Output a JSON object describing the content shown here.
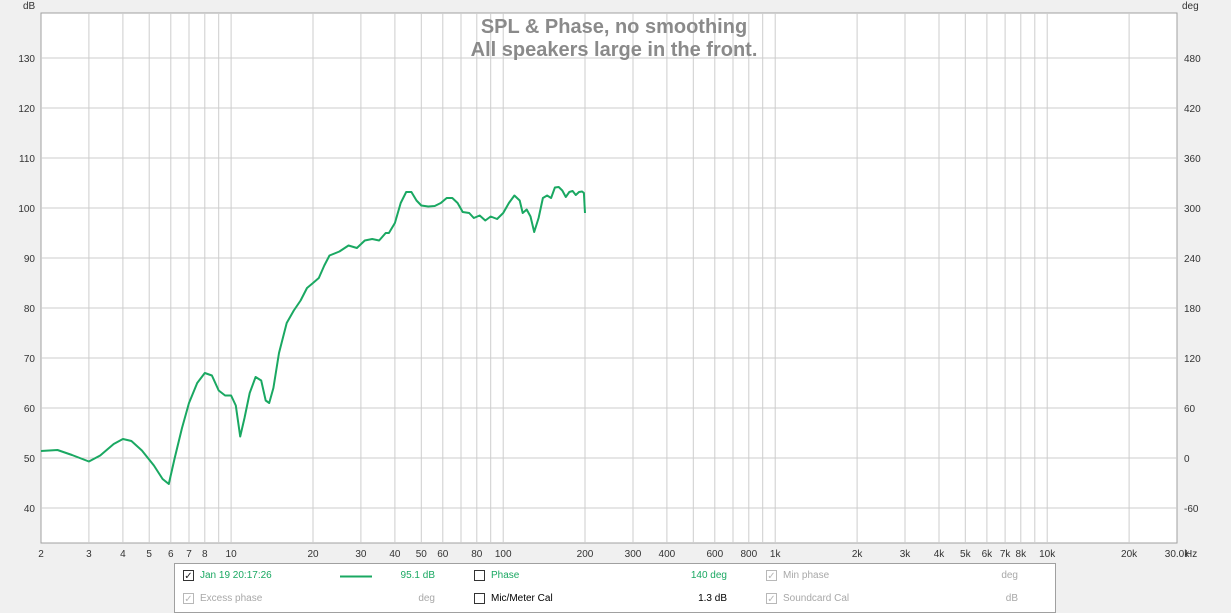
{
  "chart_data": {
    "type": "line",
    "title": "SPL & Phase, no smoothing",
    "subtitle": "All speakers large in the front.",
    "x_scale": "log",
    "xlim": [
      2,
      30000
    ],
    "x_unit": "Hz",
    "xticks": [
      {
        "v": 2,
        "label": "2"
      },
      {
        "v": 3,
        "label": "3"
      },
      {
        "v": 4,
        "label": "4"
      },
      {
        "v": 5,
        "label": "5"
      },
      {
        "v": 6,
        "label": "6"
      },
      {
        "v": 7,
        "label": "7"
      },
      {
        "v": 8,
        "label": "8"
      },
      {
        "v": 10,
        "label": "10"
      },
      {
        "v": 20,
        "label": "20"
      },
      {
        "v": 30,
        "label": "30"
      },
      {
        "v": 40,
        "label": "40"
      },
      {
        "v": 50,
        "label": "50"
      },
      {
        "v": 60,
        "label": "60"
      },
      {
        "v": 80,
        "label": "80"
      },
      {
        "v": 100,
        "label": "100"
      },
      {
        "v": 200,
        "label": "200"
      },
      {
        "v": 300,
        "label": "300"
      },
      {
        "v": 400,
        "label": "400"
      },
      {
        "v": 600,
        "label": "600"
      },
      {
        "v": 800,
        "label": "800"
      },
      {
        "v": 1000,
        "label": "1k"
      },
      {
        "v": 2000,
        "label": "2k"
      },
      {
        "v": 3000,
        "label": "3k"
      },
      {
        "v": 4000,
        "label": "4k"
      },
      {
        "v": 5000,
        "label": "5k"
      },
      {
        "v": 6000,
        "label": "6k"
      },
      {
        "v": 7000,
        "label": "7k"
      },
      {
        "v": 8000,
        "label": "8k"
      },
      {
        "v": 10000,
        "label": "10k"
      },
      {
        "v": 20000,
        "label": "20k"
      },
      {
        "v": 30000,
        "label": "30.0k"
      }
    ],
    "y_left": {
      "label": "dB",
      "min": 33,
      "max": 139,
      "ticks": [
        40,
        50,
        60,
        70,
        80,
        90,
        100,
        110,
        120,
        130
      ]
    },
    "y_right": {
      "label": "deg",
      "ticks": [
        -60,
        0,
        60,
        120,
        180,
        240,
        300,
        360,
        420,
        480
      ]
    },
    "grid": true,
    "series": [
      {
        "name": "Jan 19 20:17:26",
        "color": "#1aa862",
        "points": [
          [
            2,
            51.4
          ],
          [
            2.3,
            51.6
          ],
          [
            2.6,
            50.6
          ],
          [
            3,
            49.3
          ],
          [
            3.3,
            50.5
          ],
          [
            3.7,
            52.8
          ],
          [
            4.0,
            53.8
          ],
          [
            4.3,
            53.4
          ],
          [
            4.7,
            51.5
          ],
          [
            5.2,
            48.5
          ],
          [
            5.6,
            45.8
          ],
          [
            5.9,
            44.8
          ],
          [
            6.2,
            50
          ],
          [
            6.6,
            56
          ],
          [
            7.0,
            61
          ],
          [
            7.5,
            65
          ],
          [
            8.0,
            67
          ],
          [
            8.5,
            66.5
          ],
          [
            9,
            63.5
          ],
          [
            9.5,
            62.5
          ],
          [
            10,
            62.5
          ],
          [
            10.4,
            60.5
          ],
          [
            10.8,
            54.3
          ],
          [
            11.2,
            58
          ],
          [
            11.7,
            63
          ],
          [
            12.3,
            66.2
          ],
          [
            12.9,
            65.5
          ],
          [
            13.4,
            61.5
          ],
          [
            13.8,
            61
          ],
          [
            14.3,
            64
          ],
          [
            15,
            71
          ],
          [
            16,
            77
          ],
          [
            17,
            79.5
          ],
          [
            18,
            81.5
          ],
          [
            19,
            84
          ],
          [
            20,
            85
          ],
          [
            21,
            86
          ],
          [
            22,
            88.5
          ],
          [
            23,
            90.5
          ],
          [
            25,
            91.3
          ],
          [
            27,
            92.5
          ],
          [
            29,
            92
          ],
          [
            31,
            93.5
          ],
          [
            33,
            93.8
          ],
          [
            35,
            93.5
          ],
          [
            37,
            95
          ],
          [
            38,
            95
          ],
          [
            40,
            97
          ],
          [
            42,
            101
          ],
          [
            44,
            103.2
          ],
          [
            46,
            103.2
          ],
          [
            48,
            101.5
          ],
          [
            50,
            100.5
          ],
          [
            53,
            100.3
          ],
          [
            56,
            100.4
          ],
          [
            59,
            101
          ],
          [
            62,
            102
          ],
          [
            65,
            102
          ],
          [
            68,
            101
          ],
          [
            71,
            99.2
          ],
          [
            75,
            99
          ],
          [
            78,
            98
          ],
          [
            82,
            98.5
          ],
          [
            86,
            97.5
          ],
          [
            90,
            98.3
          ],
          [
            95,
            97.8
          ],
          [
            100,
            99
          ],
          [
            105,
            101
          ],
          [
            110,
            102.5
          ],
          [
            115,
            101.5
          ],
          [
            118,
            99
          ],
          [
            122,
            99.7
          ],
          [
            126,
            98.3
          ],
          [
            130,
            95.2
          ],
          [
            135,
            98
          ],
          [
            140,
            102
          ],
          [
            145,
            102.5
          ],
          [
            150,
            102
          ],
          [
            155,
            104.1
          ],
          [
            160,
            104.2
          ],
          [
            165,
            103.5
          ],
          [
            170,
            102.2
          ],
          [
            175,
            103.2
          ],
          [
            180,
            103.4
          ],
          [
            185,
            102.6
          ],
          [
            190,
            103.2
          ],
          [
            195,
            103.3
          ],
          [
            198,
            103
          ],
          [
            200,
            99
          ]
        ]
      }
    ]
  },
  "legend": {
    "row1": {
      "measurement": {
        "checked": "✓",
        "label": "Jan 19 20:17:26",
        "value": "95.1 dB"
      },
      "phase": {
        "checked": "",
        "label": "Phase",
        "value": "140 deg"
      },
      "min_phase": {
        "checked": "✓",
        "label": "Min phase",
        "value": "deg"
      }
    },
    "row2": {
      "excess_phase": {
        "checked": "✓",
        "label": "Excess phase",
        "value": "deg"
      },
      "mic_cal": {
        "checked": "",
        "label": "Mic/Meter Cal",
        "value": "1.3 dB"
      },
      "soundcard_cal": {
        "checked": "✓",
        "label": "Soundcard Cal",
        "value": "dB"
      }
    }
  }
}
